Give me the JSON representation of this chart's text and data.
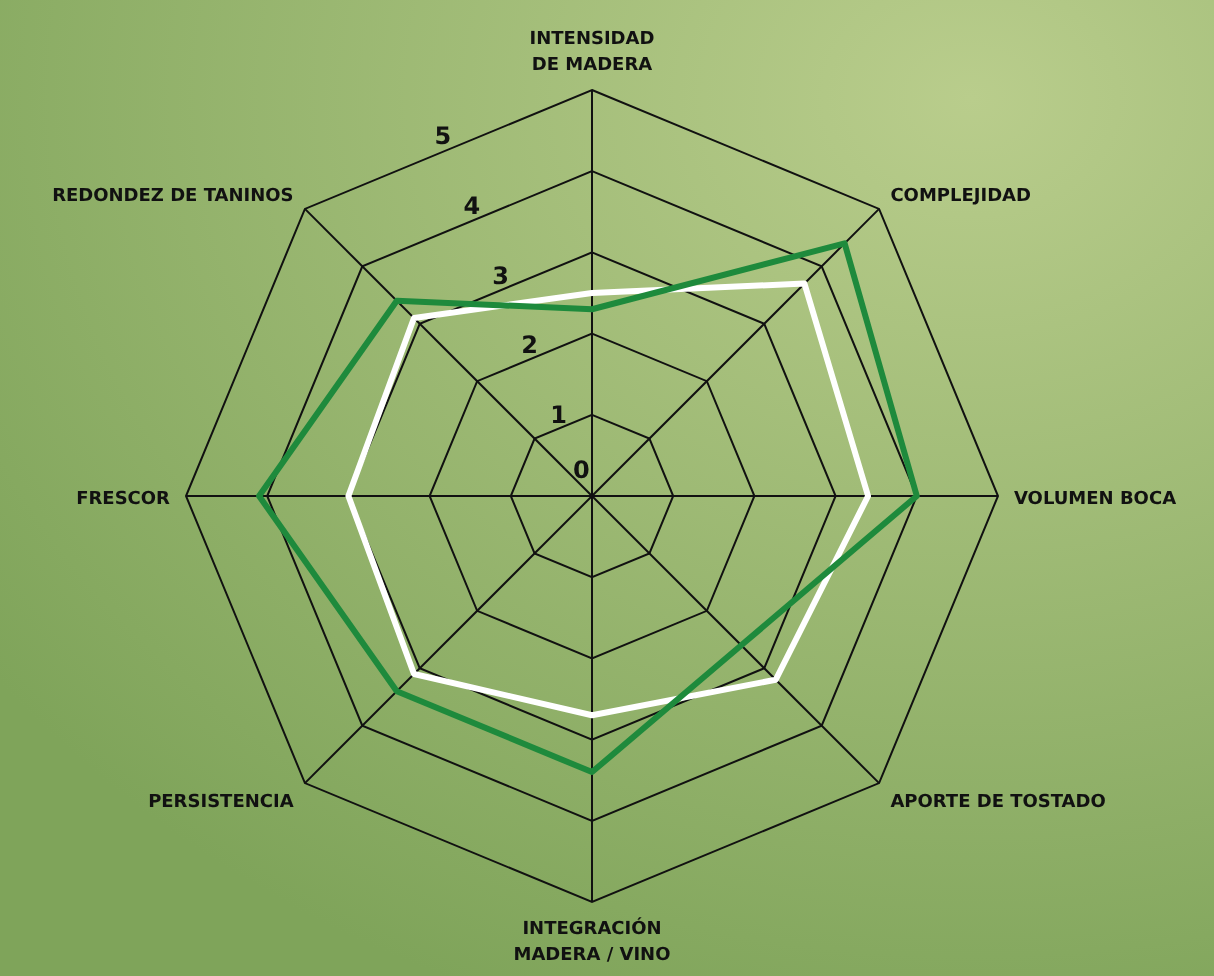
{
  "chart_data": {
    "type": "radar",
    "categories": [
      "INTENSIDAD\nDE MADERA",
      "COMPLEJIDAD",
      "VOLUMEN BOCA",
      "APORTE DE TOSTADO",
      "INTEGRACIÓN\nMADERA / VINO",
      "PERSISTENCIA",
      "FRESCOR",
      "REDONDEZ DE TANINOS"
    ],
    "series": [
      {
        "color": "#ffffff",
        "values": [
          2.5,
          3.7,
          3.4,
          3.2,
          2.7,
          3.1,
          3.0,
          3.1
        ]
      },
      {
        "color": "#1e8a3c",
        "values": [
          2.3,
          4.4,
          4.0,
          2.6,
          3.4,
          3.4,
          4.1,
          3.4
        ]
      }
    ],
    "ylim": [
      0,
      5
    ],
    "yticks": [
      0,
      1,
      2,
      3,
      4,
      5
    ],
    "grid": true
  }
}
